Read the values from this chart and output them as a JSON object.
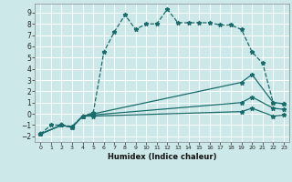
{
  "xlabel": "Humidex (Indice chaleur)",
  "background_color": "#cce8e8",
  "grid_color": "#ffffff",
  "line_color": "#1a6b6b",
  "xlim": [
    -0.5,
    23.5
  ],
  "ylim": [
    -2.5,
    9.8
  ],
  "xticks": [
    0,
    1,
    2,
    3,
    4,
    5,
    6,
    7,
    8,
    9,
    10,
    11,
    12,
    13,
    14,
    15,
    16,
    17,
    18,
    19,
    20,
    21,
    22,
    23
  ],
  "yticks": [
    -2,
    -1,
    0,
    1,
    2,
    3,
    4,
    5,
    6,
    7,
    8,
    9
  ],
  "line1_x": [
    0,
    1,
    2,
    3,
    4,
    5,
    6,
    7,
    8,
    9,
    10,
    11,
    12,
    13,
    14,
    15,
    16,
    17,
    18,
    19,
    20,
    21,
    22,
    23
  ],
  "line1_y": [
    -1.8,
    -1.0,
    -1.0,
    -1.1,
    -0.2,
    0.1,
    5.5,
    7.3,
    8.8,
    7.5,
    8.0,
    8.0,
    9.3,
    8.1,
    8.1,
    8.1,
    8.1,
    7.9,
    7.9,
    7.5,
    5.5,
    4.5,
    1.0,
    0.9
  ],
  "line2_x": [
    0,
    2,
    3,
    4,
    5,
    19,
    20,
    22,
    23
  ],
  "line2_y": [
    -1.8,
    -1.0,
    -1.2,
    -0.2,
    0.0,
    2.8,
    3.5,
    1.0,
    0.9
  ],
  "line3_x": [
    0,
    2,
    3,
    4,
    5,
    19,
    20,
    22,
    23
  ],
  "line3_y": [
    -1.8,
    -1.0,
    -1.2,
    -0.2,
    -0.1,
    1.0,
    1.5,
    0.5,
    0.4
  ],
  "line4_x": [
    0,
    2,
    3,
    4,
    5,
    19,
    20,
    22,
    23
  ],
  "line4_y": [
    -1.8,
    -1.0,
    -1.2,
    -0.2,
    -0.2,
    0.2,
    0.5,
    -0.2,
    -0.1
  ]
}
